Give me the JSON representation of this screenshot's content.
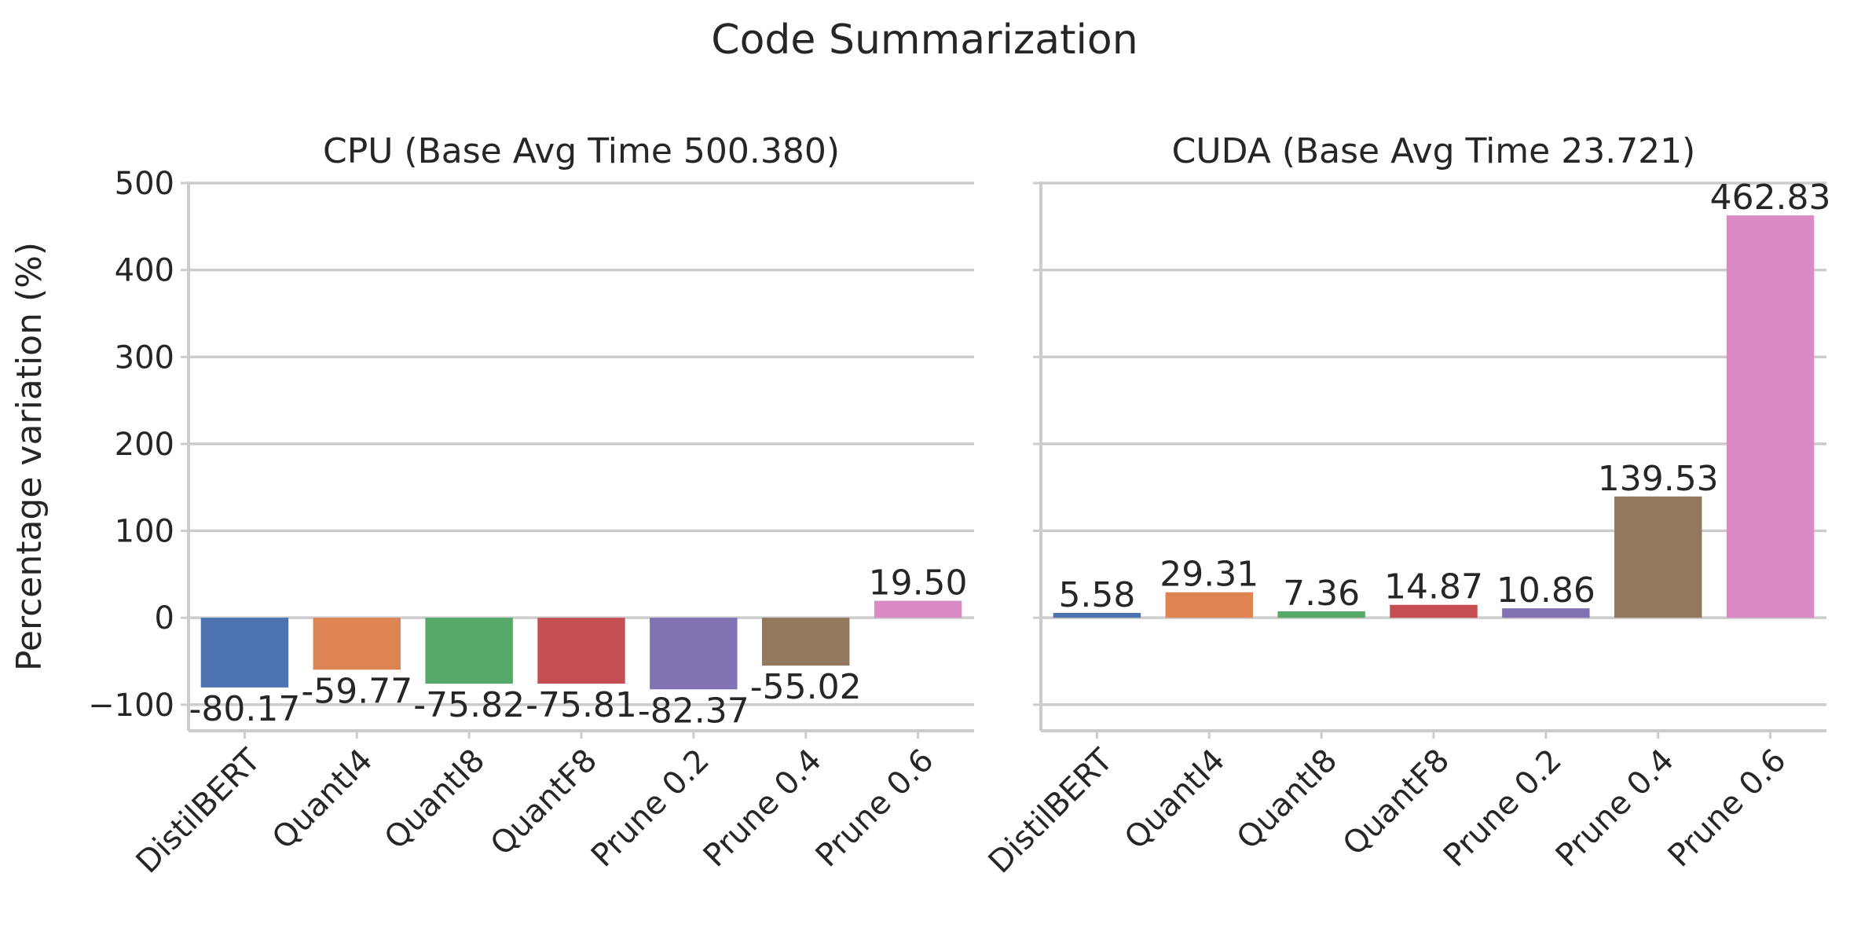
{
  "chart_data": {
    "type": "bar",
    "title": "Code Summarization",
    "ylabel": "Percentage variation (%)",
    "ylim": [
      -130,
      500
    ],
    "yticks": [
      -100,
      0,
      100,
      200,
      300,
      400,
      500
    ],
    "ytick_labels": [
      "−100",
      "0",
      "100",
      "200",
      "300",
      "400",
      "500"
    ],
    "grid": true,
    "categories": [
      "DistilBERT",
      "QuantI4",
      "QuantI8",
      "QuantF8",
      "Prune 0.2",
      "Prune 0.4",
      "Prune 0.6"
    ],
    "colors": [
      "#4c72b0",
      "#dd8452",
      "#55a868",
      "#c44e52",
      "#8172b3",
      "#937860",
      "#da8bc3"
    ],
    "panels": [
      {
        "title": "CPU (Base Avg Time 500.380)",
        "values": [
          -80.17,
          -59.77,
          -75.82,
          -75.81,
          -82.37,
          -55.02,
          19.5
        ],
        "labels": [
          "-80.17",
          "-59.77",
          "-75.82",
          "-75.81",
          "-82.37",
          "-55.02",
          "19.50"
        ]
      },
      {
        "title": "CUDA (Base Avg Time 23.721)",
        "values": [
          5.58,
          29.31,
          7.36,
          14.87,
          10.86,
          139.53,
          462.83
        ],
        "labels": [
          "5.58",
          "29.31",
          "7.36",
          "14.87",
          "10.86",
          "139.53",
          "462.83"
        ]
      }
    ]
  }
}
